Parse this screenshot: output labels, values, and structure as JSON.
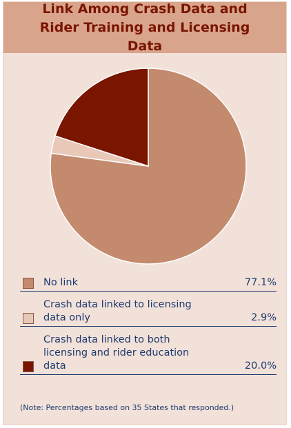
{
  "chart_data": {
    "type": "pie",
    "title": "Link Among Crash Data and Rider Training and Licensing Data",
    "categories": [
      "No link",
      "Crash data linked to licensing data only",
      "Crash data linked to both licensing and rider education data"
    ],
    "values": [
      77.1,
      2.9,
      20.0
    ],
    "value_labels": [
      "77.1%",
      "2.9%",
      "20.0%"
    ],
    "colors": [
      "#c48a6e",
      "#e9c8b8",
      "#7a1500"
    ],
    "note": "(Note: Percentages based on 35 States that responded.)"
  }
}
